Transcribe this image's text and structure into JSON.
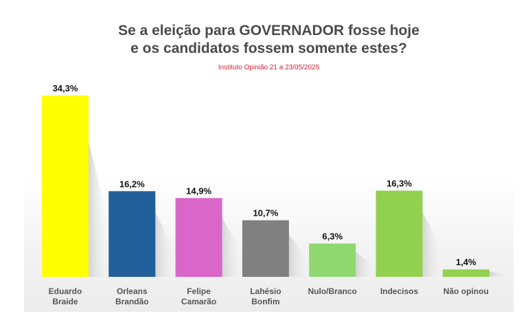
{
  "chart_data": {
    "type": "bar",
    "title": "Se a eleição para GOVERNADOR fosse hoje\ne os candidatos fossem somente estes?",
    "subtitle": "Instituto Opinião 21 a 23/05/2025",
    "categories": [
      "Eduardo\nBraide",
      "Orleans\nBrandão",
      "Felipe\nCamarão",
      "Lahésio\nBonfim",
      "Nulo/Branco",
      "Indecisos",
      "Não opinou"
    ],
    "values": [
      34.3,
      16.2,
      14.9,
      10.7,
      6.3,
      16.3,
      1.4
    ],
    "value_labels": [
      "34,3%",
      "16,2%",
      "14,9%",
      "10,7%",
      "6,3%",
      "16,3%",
      "1,4%"
    ],
    "colors": [
      "#ffff00",
      "#215f9a",
      "#d966c8",
      "#808080",
      "#8fd870",
      "#92d050",
      "#92d050"
    ],
    "ylim": [
      0,
      34.3
    ],
    "grid": false,
    "legend": "none"
  }
}
